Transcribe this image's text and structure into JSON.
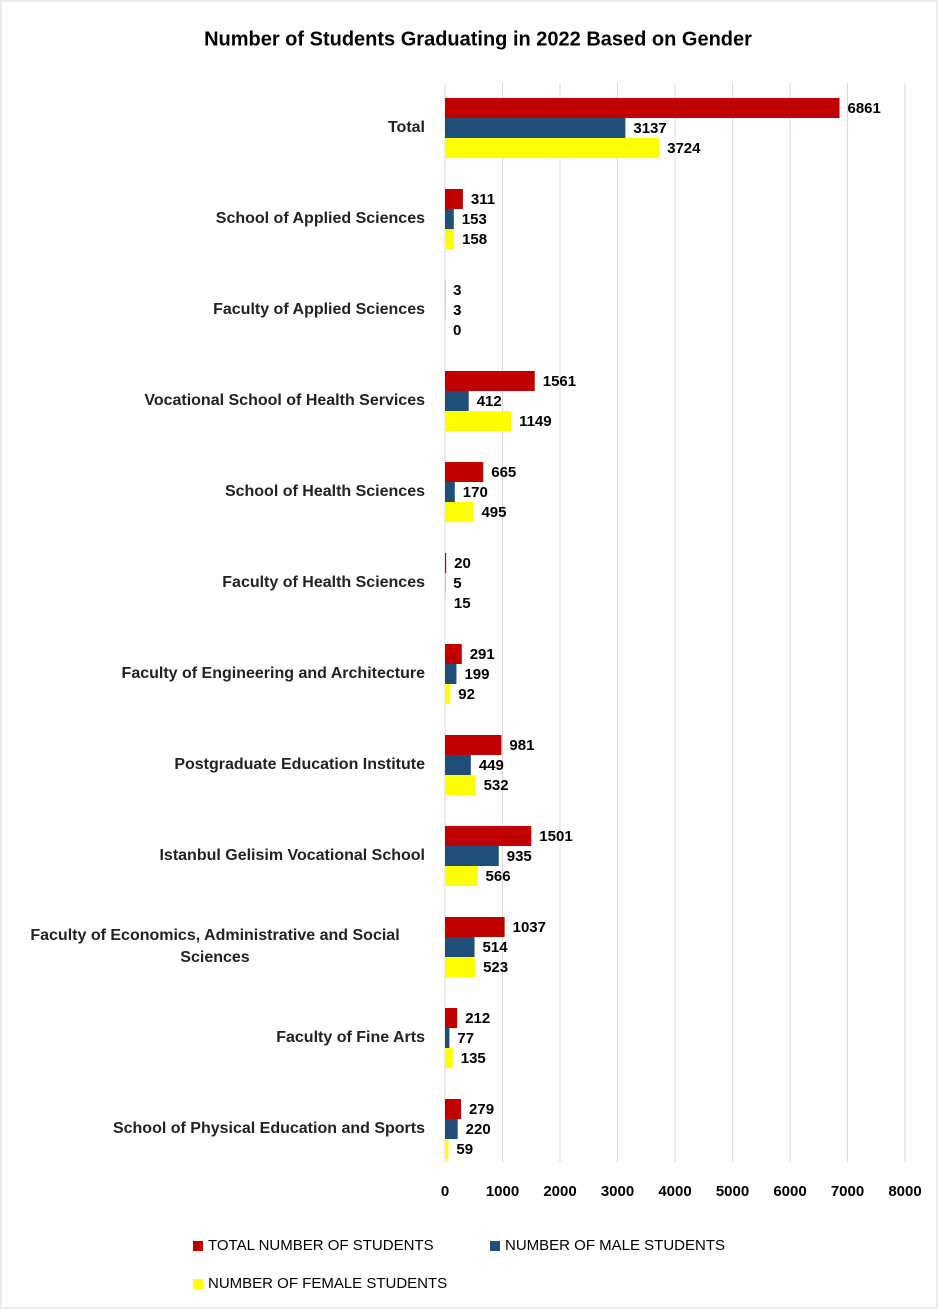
{
  "chart_data": {
    "type": "bar",
    "orientation": "horizontal",
    "title": "Number of Students Graduating in 2022 Based on Gender",
    "categories": [
      "Total",
      "School of Applied Sciences",
      "Faculty of Applied Sciences",
      "Vocational School of Health Services",
      "School of Health Sciences",
      "Faculty of Health Sciences",
      "Faculty of Engineering and Architecture",
      "Postgraduate  Education Institute",
      "Istanbul Gelisim Vocational School",
      "Faculty of Economics, Administrative and Social Sciences",
      "Faculty of Fine Arts",
      "School of Physical Education and Sports"
    ],
    "series": [
      {
        "name": "TOTAL NUMBER OF STUDENTS",
        "color": "#c00000",
        "values": [
          6861,
          311,
          3,
          1561,
          665,
          20,
          291,
          981,
          1501,
          1037,
          212,
          279
        ]
      },
      {
        "name": "NUMBER OF MALE STUDENTS",
        "color": "#1f4e79",
        "values": [
          3137,
          153,
          3,
          412,
          170,
          5,
          199,
          449,
          935,
          514,
          77,
          220
        ]
      },
      {
        "name": "NUMBER OF FEMALE STUDENTS",
        "color": "#ffff00",
        "values": [
          3724,
          158,
          0,
          1149,
          495,
          15,
          92,
          532,
          566,
          523,
          135,
          59
        ]
      }
    ],
    "xlim": [
      0,
      8000
    ],
    "xticks": [
      0,
      1000,
      2000,
      3000,
      4000,
      5000,
      6000,
      7000,
      8000
    ],
    "grid": true,
    "legend": "bottom"
  }
}
